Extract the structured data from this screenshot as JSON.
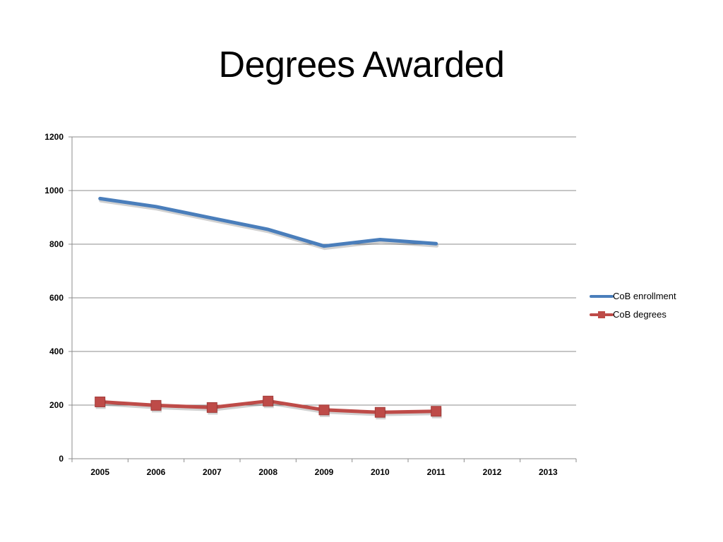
{
  "title": "Degrees Awarded",
  "chart_data": {
    "type": "line",
    "categories": [
      "2005",
      "2006",
      "2007",
      "2008",
      "2009",
      "2010",
      "2011",
      "2012",
      "2013"
    ],
    "series": [
      {
        "name": "CoB enrollment",
        "values": [
          970,
          940,
          897,
          855,
          793,
          817,
          802,
          null,
          null
        ],
        "color": "#4a7ebb",
        "marker": "none"
      },
      {
        "name": "CoB degrees",
        "values": [
          212,
          199,
          191,
          215,
          182,
          173,
          177,
          null,
          null
        ],
        "color": "#be4b48",
        "marker": "square"
      }
    ],
    "ylim": [
      0,
      1200
    ],
    "yticks": [
      0,
      200,
      400,
      600,
      800,
      1000,
      1200
    ],
    "grid": true,
    "legend_position": "right",
    "xlabel": "",
    "ylabel": ""
  }
}
